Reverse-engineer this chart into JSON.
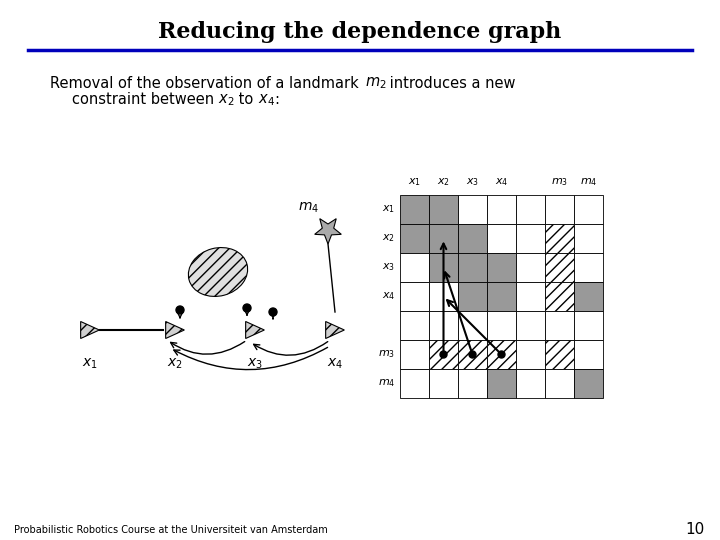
{
  "title": "Reducing the dependence graph",
  "title_fontsize": 16,
  "footer": "Probabilistic Robotics Course at the Universiteit van Amsterdam",
  "page_number": "10",
  "bg_color": "#ffffff",
  "title_line_color": "#0000bb",
  "dark_gray": "#999999",
  "white": "#ffffff"
}
